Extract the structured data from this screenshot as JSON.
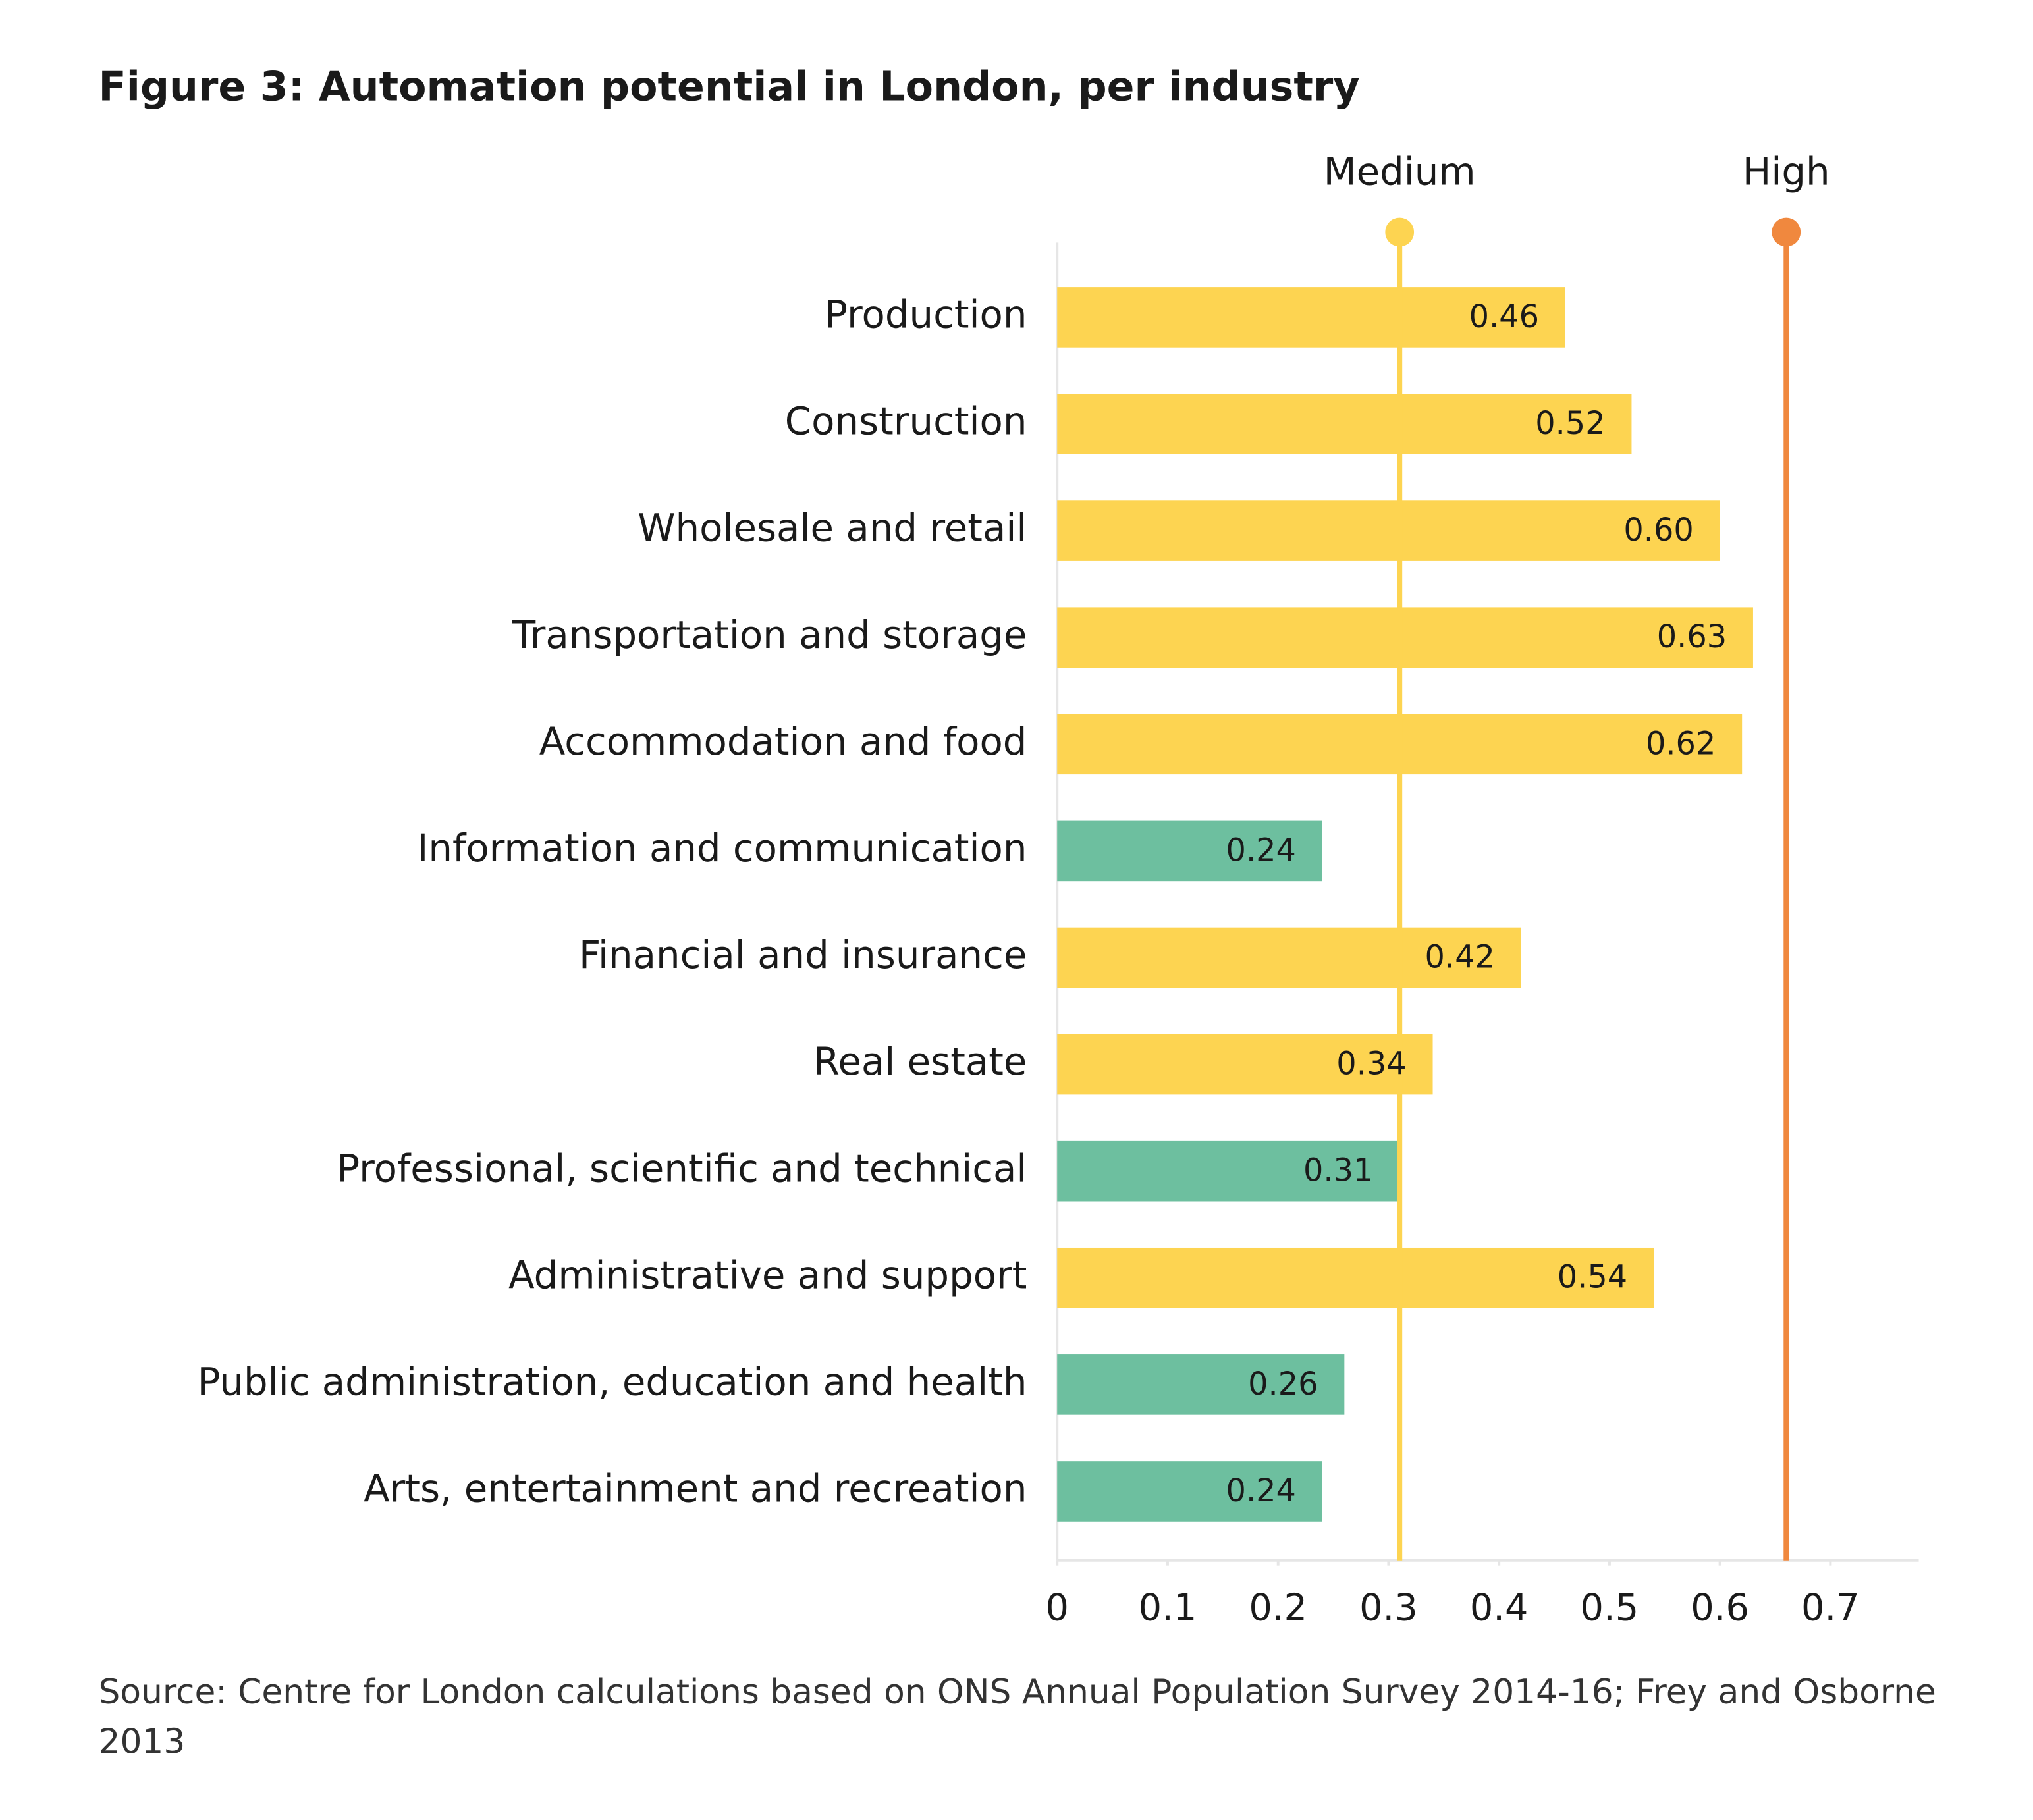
{
  "chart_data": {
    "type": "bar",
    "orientation": "horizontal",
    "title": "Figure 3: Automation potential in London, per industry",
    "categories": [
      "Production",
      "Construction",
      "Wholesale and retail",
      "Transportation and storage",
      "Accommodation and food",
      "Information and communication",
      "Financial and insurance",
      "Real estate",
      "Professional, scientific and technical",
      "Administrative and support",
      "Public administration, education and health",
      "Arts, entertainment and recreation"
    ],
    "values": [
      0.46,
      0.52,
      0.6,
      0.63,
      0.62,
      0.24,
      0.42,
      0.34,
      0.31,
      0.54,
      0.26,
      0.24
    ],
    "value_labels": [
      "0.46",
      "0.52",
      "0.60",
      "0.63",
      "0.62",
      "0.24",
      "0.42",
      "0.34",
      "0.31",
      "0.54",
      "0.26",
      "0.24"
    ],
    "colors": [
      "#fdd451",
      "#fdd451",
      "#fdd451",
      "#fdd451",
      "#fdd451",
      "#6dbf9f",
      "#fdd451",
      "#fdd451",
      "#6dbf9f",
      "#fdd451",
      "#6dbf9f",
      "#6dbf9f"
    ],
    "xlim": [
      0,
      0.78
    ],
    "xticks": [
      0,
      0.1,
      0.2,
      0.3,
      0.4,
      0.5,
      0.6,
      0.7
    ],
    "reference_lines": [
      {
        "name": "Medium",
        "value": 0.31,
        "color": "#fdd451"
      },
      {
        "name": "High",
        "value": 0.66,
        "color": "#f0883e"
      }
    ],
    "source": "Source: Centre for London calculations based on ONS Annual Population Survey 2014-16; Frey and Osborne 2013"
  }
}
